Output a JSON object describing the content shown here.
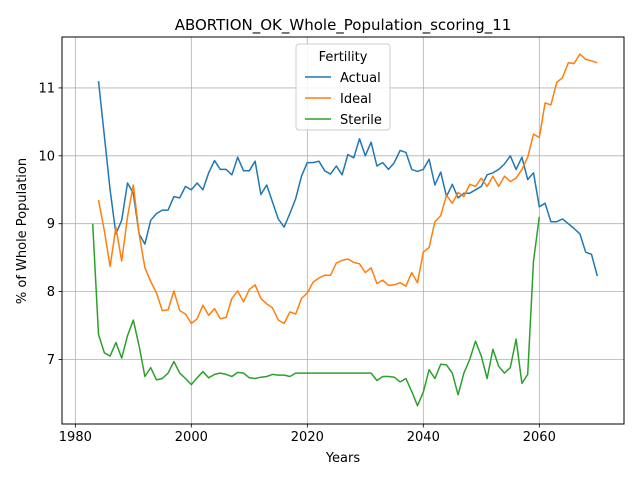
{
  "chart_data": {
    "type": "line",
    "title": "ABORTION_OK_Whole_Population_scoring_11",
    "xlabel": "Years",
    "ylabel": "% of Whole Population",
    "xlim": [
      1977.7,
      2074.6
    ],
    "ylim": [
      6.05,
      11.75
    ],
    "xticks": [
      1980,
      2000,
      2020,
      2040,
      2060
    ],
    "yticks": [
      7,
      8,
      9,
      10,
      11
    ],
    "grid": true,
    "legend": {
      "title": "Fertility",
      "placement": "top-center"
    },
    "series": [
      {
        "name": "Actual",
        "color": "#1f77b4",
        "x": [
          1984,
          1985,
          1986,
          1987,
          1988,
          1989,
          1990,
          1991,
          1992,
          1993,
          1994,
          1995,
          1996,
          1997,
          1998,
          1999,
          2000,
          2001,
          2002,
          2003,
          2004,
          2005,
          2006,
          2007,
          2008,
          2009,
          2010,
          2011,
          2012,
          2013,
          2014,
          2015,
          2016,
          2017,
          2018,
          2019,
          2020,
          2021,
          2022,
          2023,
          2024,
          2025,
          2026,
          2027,
          2028,
          2029,
          2030,
          2031,
          2032,
          2033,
          2034,
          2035,
          2036,
          2037,
          2038,
          2039,
          2040,
          2041,
          2042,
          2043,
          2044,
          2045,
          2046,
          2047,
          2048,
          2049,
          2050,
          2051,
          2052,
          2053,
          2054,
          2055,
          2056,
          2057,
          2058,
          2059,
          2060,
          2061,
          2062,
          2063,
          2064,
          2065,
          2066,
          2067,
          2068,
          2069,
          2070
        ],
        "values": [
          11.1,
          10.3,
          9.5,
          8.85,
          9.05,
          9.6,
          9.45,
          8.85,
          8.7,
          9.05,
          9.15,
          9.2,
          9.2,
          9.4,
          9.38,
          9.55,
          9.5,
          9.6,
          9.5,
          9.75,
          9.93,
          9.8,
          9.8,
          9.72,
          9.98,
          9.78,
          9.78,
          9.92,
          9.43,
          9.57,
          9.32,
          9.07,
          8.95,
          9.15,
          9.37,
          9.7,
          9.9,
          9.9,
          9.92,
          9.78,
          9.73,
          9.85,
          9.72,
          10.02,
          9.97,
          10.25,
          10.0,
          10.2,
          9.85,
          9.9,
          9.8,
          9.9,
          10.08,
          10.05,
          9.8,
          9.77,
          9.8,
          9.95,
          9.57,
          9.76,
          9.4,
          9.58,
          9.38,
          9.45,
          9.45,
          9.5,
          9.55,
          9.72,
          9.75,
          9.8,
          9.88,
          10.0,
          9.8,
          9.98,
          9.65,
          9.75,
          9.25,
          9.3,
          9.03,
          9.03,
          9.07,
          9.0,
          8.93,
          8.85,
          8.58,
          8.55,
          8.23
        ]
      },
      {
        "name": "Ideal",
        "color": "#ff7f0e",
        "x": [
          1984,
          1985,
          1986,
          1987,
          1988,
          1989,
          1990,
          1991,
          1992,
          1993,
          1994,
          1995,
          1996,
          1997,
          1998,
          1999,
          2000,
          2001,
          2002,
          2003,
          2004,
          2005,
          2006,
          2007,
          2008,
          2009,
          2010,
          2011,
          2012,
          2013,
          2014,
          2015,
          2016,
          2017,
          2018,
          2019,
          2020,
          2021,
          2022,
          2023,
          2024,
          2025,
          2026,
          2027,
          2028,
          2029,
          2030,
          2031,
          2032,
          2033,
          2034,
          2035,
          2036,
          2037,
          2038,
          2039,
          2040,
          2041,
          2042,
          2043,
          2044,
          2045,
          2046,
          2047,
          2048,
          2049,
          2050,
          2051,
          2052,
          2053,
          2054,
          2055,
          2056,
          2057,
          2058,
          2059,
          2060,
          2061,
          2062,
          2063,
          2064,
          2065,
          2066,
          2067,
          2068,
          2069,
          2070
        ],
        "values": [
          9.35,
          8.9,
          8.37,
          8.95,
          8.45,
          9.1,
          9.57,
          8.85,
          8.35,
          8.15,
          7.98,
          7.72,
          7.73,
          8.01,
          7.72,
          7.67,
          7.53,
          7.6,
          7.8,
          7.65,
          7.75,
          7.6,
          7.62,
          7.9,
          8.01,
          7.85,
          8.03,
          8.1,
          7.9,
          7.82,
          7.76,
          7.58,
          7.53,
          7.7,
          7.67,
          7.9,
          7.98,
          8.14,
          8.2,
          8.24,
          8.24,
          8.42,
          8.46,
          8.48,
          8.43,
          8.41,
          8.28,
          8.35,
          8.12,
          8.17,
          8.09,
          8.1,
          8.13,
          8.08,
          8.28,
          8.13,
          8.58,
          8.65,
          9.03,
          9.12,
          9.42,
          9.3,
          9.46,
          9.4,
          9.58,
          9.55,
          9.67,
          9.55,
          9.7,
          9.55,
          9.7,
          9.62,
          9.67,
          9.8,
          9.98,
          10.32,
          10.27,
          10.78,
          10.75,
          11.08,
          11.15,
          11.37,
          11.36,
          11.5,
          11.42,
          11.4,
          11.37
        ]
      },
      {
        "name": "Sterile",
        "color": "#2ca02c",
        "x": [
          1983,
          1984,
          1985,
          1986,
          1987,
          1988,
          1989,
          1990,
          1991,
          1992,
          1993,
          1994,
          1995,
          1996,
          1997,
          1998,
          1999,
          2000,
          2001,
          2002,
          2003,
          2004,
          2005,
          2006,
          2007,
          2008,
          2009,
          2010,
          2011,
          2012,
          2013,
          2014,
          2015,
          2016,
          2017,
          2018,
          2019,
          2020,
          2021,
          2022,
          2023,
          2024,
          2025,
          2026,
          2027,
          2028,
          2029,
          2030,
          2031,
          2032,
          2033,
          2034,
          2035,
          2036,
          2037,
          2038,
          2039,
          2040,
          2041,
          2042,
          2043,
          2044,
          2045,
          2046,
          2047,
          2048,
          2049,
          2050,
          2051,
          2052,
          2053,
          2054,
          2055,
          2056,
          2057,
          2058,
          2059,
          2060
        ],
        "values": [
          9.0,
          7.37,
          7.1,
          7.05,
          7.25,
          7.02,
          7.35,
          7.58,
          7.2,
          6.75,
          6.88,
          6.7,
          6.72,
          6.8,
          6.97,
          6.8,
          6.72,
          6.63,
          6.73,
          6.82,
          6.73,
          6.78,
          6.8,
          6.78,
          6.75,
          6.81,
          6.8,
          6.73,
          6.72,
          6.74,
          6.75,
          6.78,
          6.77,
          6.77,
          6.75,
          6.8,
          6.8,
          6.8,
          6.8,
          6.8,
          6.8,
          6.8,
          6.8,
          6.8,
          6.8,
          6.8,
          6.8,
          6.8,
          6.8,
          6.69,
          6.75,
          6.75,
          6.74,
          6.67,
          6.72,
          6.53,
          6.32,
          6.52,
          6.85,
          6.72,
          6.93,
          6.92,
          6.8,
          6.48,
          6.8,
          7.0,
          7.27,
          7.05,
          6.72,
          7.15,
          6.9,
          6.8,
          6.88,
          7.3,
          6.65,
          6.78,
          8.45,
          9.1
        ]
      }
    ]
  }
}
